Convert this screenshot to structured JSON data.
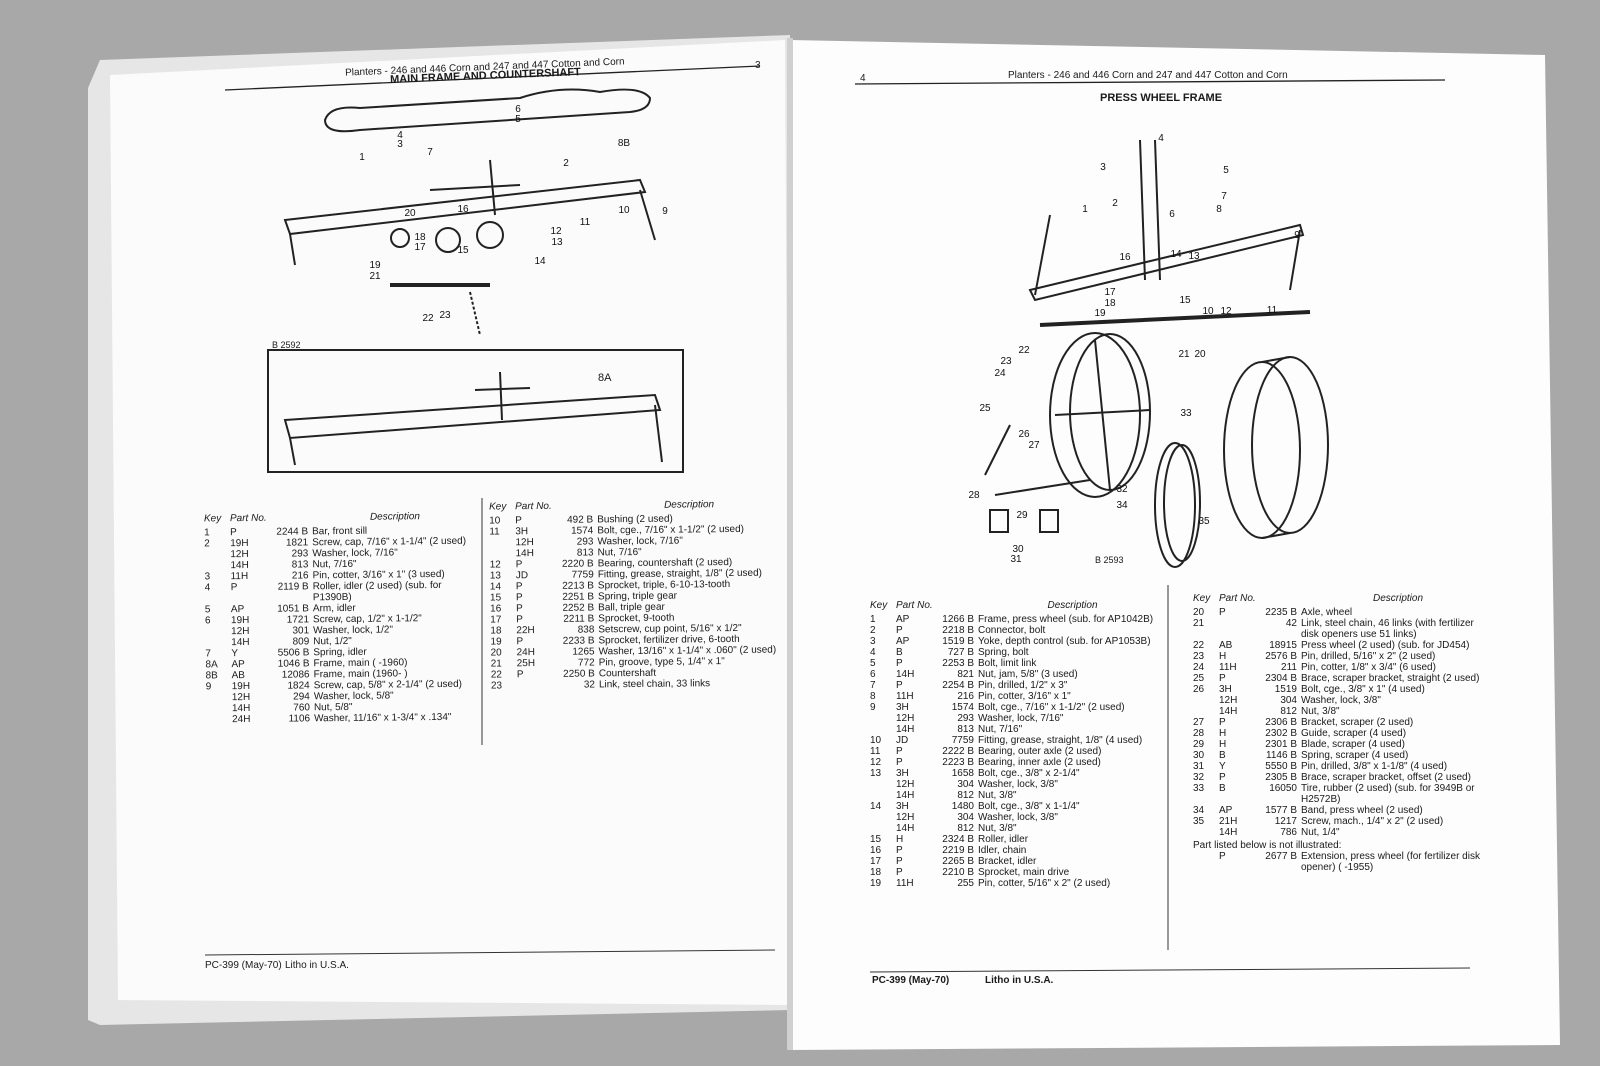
{
  "left_page": {
    "header": "Planters - 246 and 446 Corn and 247 and 447 Cotton and Corn",
    "page_number": "3",
    "title": "MAIN FRAME AND COUNTERSHAFT",
    "figure_code": "B 2592",
    "inset_label": "8A",
    "callouts": [
      "1",
      "2",
      "3",
      "4",
      "5",
      "6",
      "7",
      "8B",
      "9",
      "10",
      "11",
      "12",
      "13",
      "14",
      "15",
      "16",
      "17",
      "18",
      "19",
      "20",
      "21",
      "22",
      "23"
    ],
    "table": {
      "columns": [
        "Key",
        "Part No.",
        "Description"
      ],
      "col1": [
        [
          "1",
          "P",
          "2244 B",
          "Bar, front sill"
        ],
        [
          "2",
          "19H",
          "1821",
          "Screw, cap, 7/16\" x 1-1/4\" (2 used)"
        ],
        [
          null,
          "12H",
          "293",
          "Washer, lock, 7/16\""
        ],
        [
          null,
          "14H",
          "813",
          "Nut, 7/16\""
        ],
        [
          "3",
          "11H",
          "216",
          "Pin, cotter, 3/16\" x 1\" (3 used)"
        ],
        [
          "4",
          "P",
          "2119 B",
          "Roller, idler (2 used) (sub. for P1390B)"
        ],
        [
          "5",
          "AP",
          "1051 B",
          "Arm, idler"
        ],
        [
          "6",
          "19H",
          "1721",
          "Screw, cap, 1/2\" x 1-1/2\""
        ],
        [
          null,
          "12H",
          "301",
          "Washer, lock, 1/2\""
        ],
        [
          null,
          "14H",
          "809",
          "Nut, 1/2\""
        ],
        [
          "7",
          "Y",
          "5506 B",
          "Spring, idler"
        ],
        [
          "8A",
          "AP",
          "1046 B",
          "Frame, main (      -1960)"
        ],
        [
          "8B",
          "AB",
          "12086",
          "Frame, main (1960-      )"
        ],
        [
          "9",
          "19H",
          "1824",
          "Screw, cap, 5/8\" x 2-1/4\" (2 used)"
        ],
        [
          null,
          "12H",
          "294",
          "Washer, lock, 5/8\""
        ],
        [
          null,
          "14H",
          "760",
          "Nut, 5/8\""
        ],
        [
          null,
          "24H",
          "1106",
          "Washer, 11/16\" x 1-3/4\" x .134\""
        ]
      ],
      "col2": [
        [
          "10",
          "P",
          "492 B",
          "Bushing (2 used)"
        ],
        [
          "11",
          "3H",
          "1574",
          "Bolt, cge., 7/16\" x 1-1/2\" (2 used)"
        ],
        [
          null,
          "12H",
          "293",
          "Washer, lock, 7/16\""
        ],
        [
          null,
          "14H",
          "813",
          "Nut, 7/16\""
        ],
        [
          "12",
          "P",
          "2220 B",
          "Bearing, countershaft (2 used)"
        ],
        [
          "13",
          "JD",
          "7759",
          "Fitting, grease, straight, 1/8\" (2 used)"
        ],
        [
          "14",
          "P",
          "2213 B",
          "Sprocket, triple, 6-10-13-tooth"
        ],
        [
          "15",
          "P",
          "2251 B",
          "Spring, triple gear"
        ],
        [
          "16",
          "P",
          "2252 B",
          "Ball, triple gear"
        ],
        [
          "17",
          "P",
          "2211 B",
          "Sprocket, 9-tooth"
        ],
        [
          "18",
          "22H",
          "838",
          "Setscrew, cup point, 5/16\" x 1/2\""
        ],
        [
          "19",
          "P",
          "2233 B",
          "Sprocket, fertilizer drive, 6-tooth"
        ],
        [
          "20",
          "24H",
          "1265",
          "Washer, 13/16\" x 1-1/4\" x .060\" (2 used)"
        ],
        [
          "21",
          "25H",
          "772",
          "Pin, groove, type 5, 1/4\" x 1\""
        ],
        [
          "22",
          "P",
          "2250 B",
          "Countershaft"
        ],
        [
          "23",
          null,
          "32",
          "Link, steel chain, 33 links"
        ]
      ]
    },
    "footer": [
      "PC-399 (May-70)",
      "Litho in U.S.A."
    ]
  },
  "right_page": {
    "header": "Planters - 246 and 446 Corn and 247 and 447 Cotton and Corn",
    "page_number": "4",
    "title": "PRESS WHEEL FRAME",
    "figure_code": "B 2593",
    "callouts": [
      "1",
      "2",
      "3",
      "4",
      "5",
      "6",
      "7",
      "8",
      "9",
      "10",
      "11",
      "12",
      "13",
      "14",
      "15",
      "16",
      "17",
      "18",
      "19",
      "20",
      "21",
      "22",
      "23",
      "24",
      "25",
      "26",
      "27",
      "28",
      "29",
      "30",
      "31",
      "32",
      "33",
      "34",
      "35"
    ],
    "table": {
      "columns": [
        "Key",
        "Part No.",
        "Description"
      ],
      "col1": [
        [
          "1",
          "AP",
          "1266 B",
          "Frame, press wheel (sub. for AP1042B)"
        ],
        [
          "2",
          "P",
          "2218 B",
          "Connector, bolt"
        ],
        [
          "3",
          "AP",
          "1519 B",
          "Yoke, depth control (sub. for AP1053B)"
        ],
        [
          "4",
          "B",
          "727 B",
          "Spring, bolt"
        ],
        [
          "5",
          "P",
          "2253 B",
          "Bolt, limit link"
        ],
        [
          "6",
          "14H",
          "821",
          "Nut, jam, 5/8\" (3 used)"
        ],
        [
          "7",
          "P",
          "2254 B",
          "Pin, drilled, 1/2\" x 3\""
        ],
        [
          "8",
          "11H",
          "216",
          "Pin, cotter, 3/16\" x 1\""
        ],
        [
          "9",
          "3H",
          "1574",
          "Bolt, cge., 7/16\" x 1-1/2\" (2 used)"
        ],
        [
          null,
          "12H",
          "293",
          "Washer, lock, 7/16\""
        ],
        [
          null,
          "14H",
          "813",
          "Nut, 7/16\""
        ],
        [
          "10",
          "JD",
          "7759",
          "Fitting, grease, straight, 1/8\" (4 used)"
        ],
        [
          "11",
          "P",
          "2222 B",
          "Bearing, outer axle (2 used)"
        ],
        [
          "12",
          "P",
          "2223 B",
          "Bearing, inner axle (2 used)"
        ],
        [
          "13",
          "3H",
          "1658",
          "Bolt, cge., 3/8\" x 2-1/4\""
        ],
        [
          null,
          "12H",
          "304",
          "Washer, lock, 3/8\""
        ],
        [
          null,
          "14H",
          "812",
          "Nut, 3/8\""
        ],
        [
          "14",
          "3H",
          "1480",
          "Bolt, cge., 3/8\" x 1-1/4\""
        ],
        [
          null,
          "12H",
          "304",
          "Washer, lock, 3/8\""
        ],
        [
          null,
          "14H",
          "812",
          "Nut, 3/8\""
        ],
        [
          "15",
          "H",
          "2324 B",
          "Roller, idler"
        ],
        [
          "16",
          "P",
          "2219 B",
          "Idler, chain"
        ],
        [
          "17",
          "P",
          "2265 B",
          "Bracket, idler"
        ],
        [
          "18",
          "P",
          "2210 B",
          "Sprocket, main drive"
        ],
        [
          "19",
          "11H",
          "255",
          "Pin, cotter, 5/16\" x 2\" (2 used)"
        ]
      ],
      "col2": [
        [
          "20",
          "P",
          "2235 B",
          "Axle, wheel"
        ],
        [
          "21",
          null,
          "42",
          "Link, steel chain, 46 links (with fertilizer disk openers use 51 links)"
        ],
        [
          "22",
          "AB",
          "18915",
          "Press wheel (2 used) (sub. for JD454)"
        ],
        [
          "23",
          "H",
          "2576 B",
          "Pin, drilled, 5/16\" x 2\" (2 used)"
        ],
        [
          "24",
          "11H",
          "211",
          "Pin, cotter, 1/8\" x 3/4\" (6 used)"
        ],
        [
          "25",
          "P",
          "2304 B",
          "Brace, scraper bracket, straight (2 used)"
        ],
        [
          "26",
          "3H",
          "1519",
          "Bolt, cge., 3/8\" x 1\" (4 used)"
        ],
        [
          null,
          "12H",
          "304",
          "Washer, lock, 3/8\""
        ],
        [
          null,
          "14H",
          "812",
          "Nut, 3/8\""
        ],
        [
          "27",
          "P",
          "2306 B",
          "Bracket, scraper (2 used)"
        ],
        [
          "28",
          "H",
          "2302 B",
          "Guide, scraper (4 used)"
        ],
        [
          "29",
          "H",
          "2301 B",
          "Blade, scraper (4 used)"
        ],
        [
          "30",
          "B",
          "1146 B",
          "Spring, scraper (4 used)"
        ],
        [
          "31",
          "Y",
          "5550 B",
          "Pin, drilled, 3/8\" x 1-1/8\" (4 used)"
        ],
        [
          "32",
          "P",
          "2305 B",
          "Brace, scraper bracket, offset (2 used)"
        ],
        [
          "33",
          "B",
          "16050",
          "Tire, rubber (2 used) (sub. for 3949B or H2572B)"
        ],
        [
          "34",
          "AP",
          "1577 B",
          "Band, press wheel (2 used)"
        ],
        [
          "35",
          "21H",
          "1217",
          "Screw, mach., 1/4\" x 2\" (2 used)"
        ],
        [
          null,
          "14H",
          "786",
          "Nut, 1/4\""
        ]
      ],
      "note": "Part listed below is not illustrated:",
      "note_rows": [
        [
          null,
          "P",
          "2677 B",
          "Extension, press wheel (for fertilizer disk opener) (      -1955)"
        ]
      ]
    },
    "footer": [
      "PC-399 (May-70)",
      "Litho in U.S.A."
    ]
  }
}
